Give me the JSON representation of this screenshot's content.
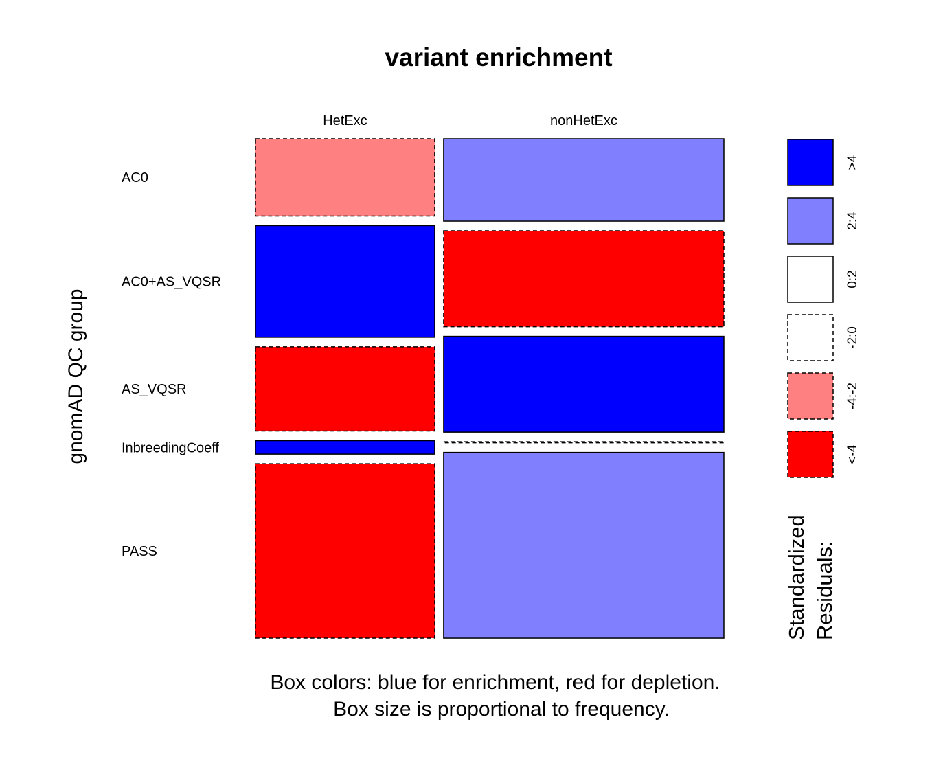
{
  "chart_data": {
    "type": "mosaic",
    "title": "variant enrichment",
    "ylabel": "gnomAD QC group",
    "columns": [
      "HetExc",
      "nonHetExc"
    ],
    "rows": [
      "AC0",
      "AC0+AS_VQSR",
      "AS_VQSR",
      "InbreedingCoeff",
      "PASS"
    ],
    "column_share": [
      0.39,
      0.61
    ],
    "cells": [
      {
        "row": "AC0",
        "col": "HetExc",
        "proportion_in_column": 0.155,
        "residual_class": "-4:-2"
      },
      {
        "row": "AC0+AS_VQSR",
        "col": "HetExc",
        "proportion_in_column": 0.224,
        "residual_class": ">4"
      },
      {
        "row": "AS_VQSR",
        "col": "HetExc",
        "proportion_in_column": 0.169,
        "residual_class": "<-4"
      },
      {
        "row": "InbreedingCoeff",
        "col": "HetExc",
        "proportion_in_column": 0.027,
        "residual_class": ">4"
      },
      {
        "row": "PASS",
        "col": "HetExc",
        "proportion_in_column": 0.35,
        "residual_class": "<-4"
      },
      {
        "row": "AC0",
        "col": "nonHetExc",
        "proportion_in_column": 0.166,
        "residual_class": "2:4"
      },
      {
        "row": "AC0+AS_VQSR",
        "col": "nonHetExc",
        "proportion_in_column": 0.193,
        "residual_class": "<-4"
      },
      {
        "row": "AS_VQSR",
        "col": "nonHetExc",
        "proportion_in_column": 0.193,
        "residual_class": ">4"
      },
      {
        "row": "InbreedingCoeff",
        "col": "nonHetExc",
        "proportion_in_column": 0.002,
        "residual_class": "-2:0"
      },
      {
        "row": "PASS",
        "col": "nonHetExc",
        "proportion_in_column": 0.374,
        "residual_class": "2:4"
      }
    ],
    "legend": {
      "title_lines": [
        "Standardized",
        "Residuals:"
      ],
      "placement": "right",
      "items": [
        {
          "label": ">4",
          "fill": "#0000FF",
          "dashed": false
        },
        {
          "label": "2:4",
          "fill": "#8080FF",
          "dashed": false
        },
        {
          "label": "0:2",
          "fill": "#FFFFFF",
          "dashed": false
        },
        {
          "label": "-2:0",
          "fill": "#FFFFFF",
          "dashed": true
        },
        {
          "label": "-4:-2",
          "fill": "#FF8080",
          "dashed": true
        },
        {
          "label": "<-4",
          "fill": "#FF0000",
          "dashed": true
        }
      ]
    },
    "caption_lines": [
      "Box colors: blue for enrichment, red for depletion.",
      "Box size is proportional to frequency."
    ]
  }
}
